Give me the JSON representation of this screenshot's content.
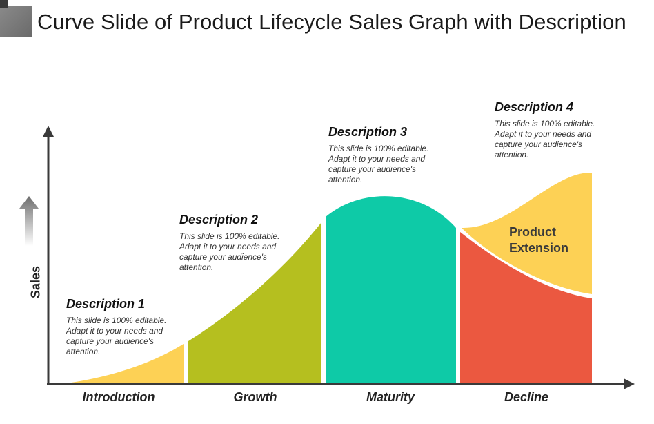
{
  "title": "Curve Slide of Product Lifecycle Sales Graph with Description",
  "axis": {
    "y_label": "Sales"
  },
  "stages": [
    {
      "label": "Introduction",
      "color": "#FDD155"
    },
    {
      "label": "Growth",
      "color": "#B5BF1F"
    },
    {
      "label": "Maturity",
      "color": "#0ECAA7"
    },
    {
      "label": "Decline",
      "color": "#EB5840"
    }
  ],
  "extension": {
    "line1": "Product",
    "line2": "Extension",
    "color": "#FDD155"
  },
  "descriptions": [
    {
      "heading": "Description 1",
      "lines": [
        "This slide is 100% editable.",
        "Adapt it to your needs and",
        "capture your audience's",
        "attention."
      ]
    },
    {
      "heading": "Description 2",
      "lines": [
        "This slide is 100% editable.",
        "Adapt it to your needs and",
        "capture your audience's",
        "attention."
      ]
    },
    {
      "heading": "Description 3",
      "lines": [
        "This slide is 100% editable.",
        "Adapt it to your needs and",
        "capture your audience's",
        "attention."
      ]
    },
    {
      "heading": "Description 4",
      "lines": [
        "This slide is 100% editable.",
        "Adapt it to your needs and",
        "capture your audience's",
        "attention."
      ]
    }
  ]
}
